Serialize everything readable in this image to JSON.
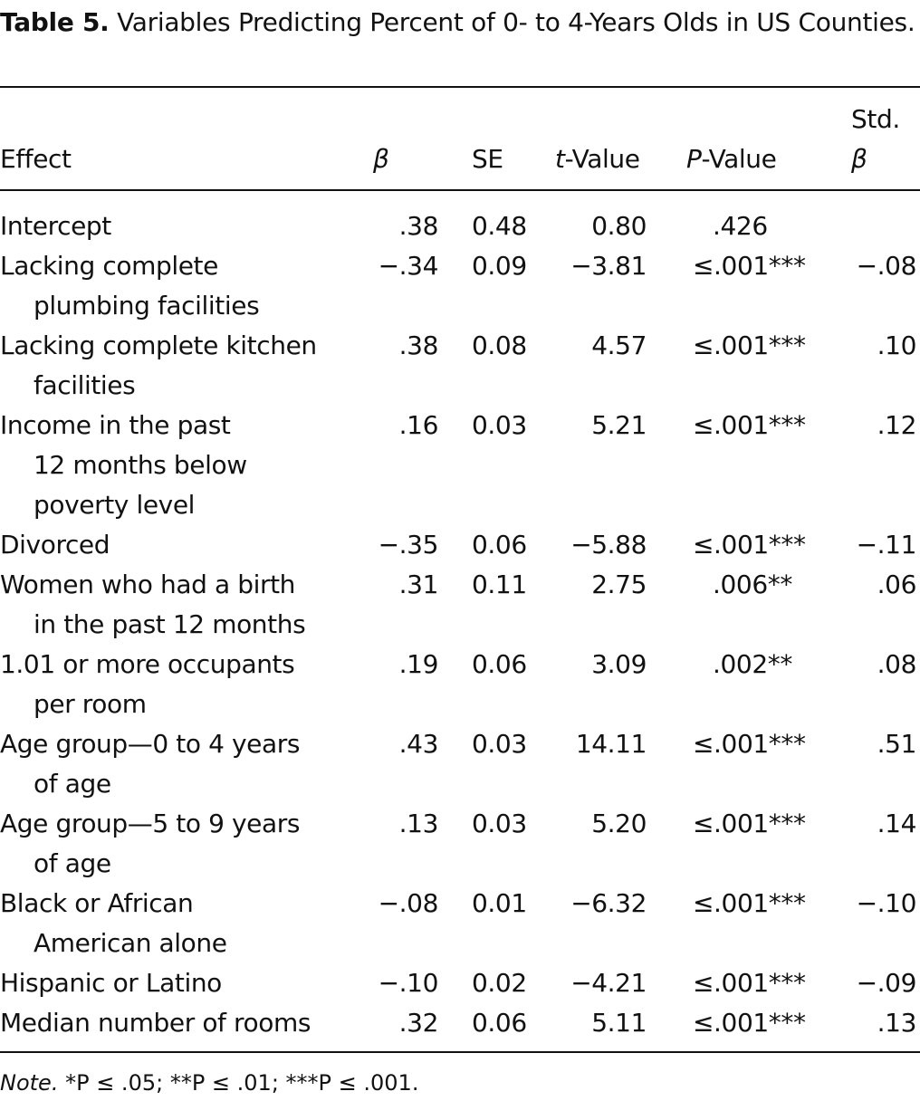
{
  "caption": {
    "label": "Table 5.",
    "text": "Variables Predicting Percent of 0- to 4-Years Olds in US Counties."
  },
  "headers": {
    "effect": "Effect",
    "beta": "β",
    "se": "SE",
    "t_italic": "t",
    "t_rest": "-Value",
    "p_italic": "P",
    "p_rest": "-Value",
    "std_top": "Std.",
    "std_bottom": "β"
  },
  "rows": [
    {
      "effect_lines": [
        "Intercept"
      ],
      "beta": ".38",
      "se": "0.48",
      "t": "0.80",
      "p": ".426",
      "std_beta": ""
    },
    {
      "effect_lines": [
        "Lacking complete",
        "plumbing facilities"
      ],
      "beta": "−.34",
      "se": "0.09",
      "t": "−3.81",
      "p": "≤.001***",
      "std_beta": "−.08"
    },
    {
      "effect_lines": [
        "Lacking complete kitchen",
        "facilities"
      ],
      "beta": ".38",
      "se": "0.08",
      "t": "4.57",
      "p": "≤.001***",
      "std_beta": ".10"
    },
    {
      "effect_lines": [
        "Income in the past",
        "12 months below",
        "poverty level"
      ],
      "beta": ".16",
      "se": "0.03",
      "t": "5.21",
      "p": "≤.001***",
      "std_beta": ".12"
    },
    {
      "effect_lines": [
        "Divorced"
      ],
      "beta": "−.35",
      "se": "0.06",
      "t": "−5.88",
      "p": "≤.001***",
      "std_beta": "−.11"
    },
    {
      "effect_lines": [
        "Women who had a birth",
        "in the past 12 months"
      ],
      "beta": ".31",
      "se": "0.11",
      "t": "2.75",
      "p": ".006**",
      "std_beta": ".06"
    },
    {
      "effect_lines": [
        "1.01 or more occupants",
        "per room"
      ],
      "beta": ".19",
      "se": "0.06",
      "t": "3.09",
      "p": ".002**",
      "std_beta": ".08"
    },
    {
      "effect_lines": [
        "Age group—0 to 4 years",
        "of age"
      ],
      "beta": ".43",
      "se": "0.03",
      "t": "14.11",
      "p": "≤.001***",
      "std_beta": ".51"
    },
    {
      "effect_lines": [
        "Age group—5 to 9 years",
        "of age"
      ],
      "beta": ".13",
      "se": "0.03",
      "t": "5.20",
      "p": "≤.001***",
      "std_beta": ".14"
    },
    {
      "effect_lines": [
        "Black or African",
        "American alone"
      ],
      "beta": "−.08",
      "se": "0.01",
      "t": "−6.32",
      "p": "≤.001***",
      "std_beta": "−.10"
    },
    {
      "effect_lines": [
        "Hispanic or Latino"
      ],
      "beta": "−.10",
      "se": "0.02",
      "t": "−4.21",
      "p": "≤.001***",
      "std_beta": "−.09"
    },
    {
      "effect_lines": [
        "Median number of rooms"
      ],
      "beta": ".32",
      "se": "0.06",
      "t": "5.11",
      "p": "≤.001***",
      "std_beta": ".13"
    }
  ],
  "note": {
    "label": "Note.",
    "text": "*P ≤ .05; **P ≤ .01; ***P ≤ .001."
  }
}
